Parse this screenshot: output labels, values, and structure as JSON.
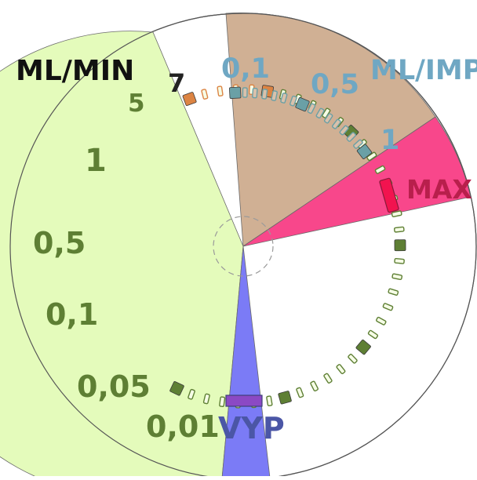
{
  "dial": {
    "colors": {
      "flow_sector": "#e4fbbb",
      "impulse_sector": "#d0b094",
      "max_sector": "#f8478b",
      "vyp_sector": "#7b7bf6",
      "flow_ticks": "#5e7f34",
      "flow_top_ticks": "#dc8443",
      "impulse_ticks": "#6aa0a6",
      "max_marker": "#f2134f",
      "vyp_marker": "#8b49c4",
      "flow_text": "#5e7f34",
      "impulse_text": "#6fa7c3",
      "max_text": "#b81f4c",
      "vyp_text": "#4b56a6"
    },
    "flow_scale": {
      "unit": "ML/MIN",
      "labels": {
        "v7": "7",
        "v5": "5",
        "v1": "1",
        "v05": "0,5",
        "v01": "0,1",
        "v005": "0,05",
        "v001": "0,01"
      }
    },
    "impulse_scale": {
      "unit": "ML/IMP",
      "labels": {
        "v01": "0,1",
        "v05": "0,5",
        "v1": "1"
      }
    },
    "max_label": "MAX",
    "vyp_label": "VYP"
  }
}
